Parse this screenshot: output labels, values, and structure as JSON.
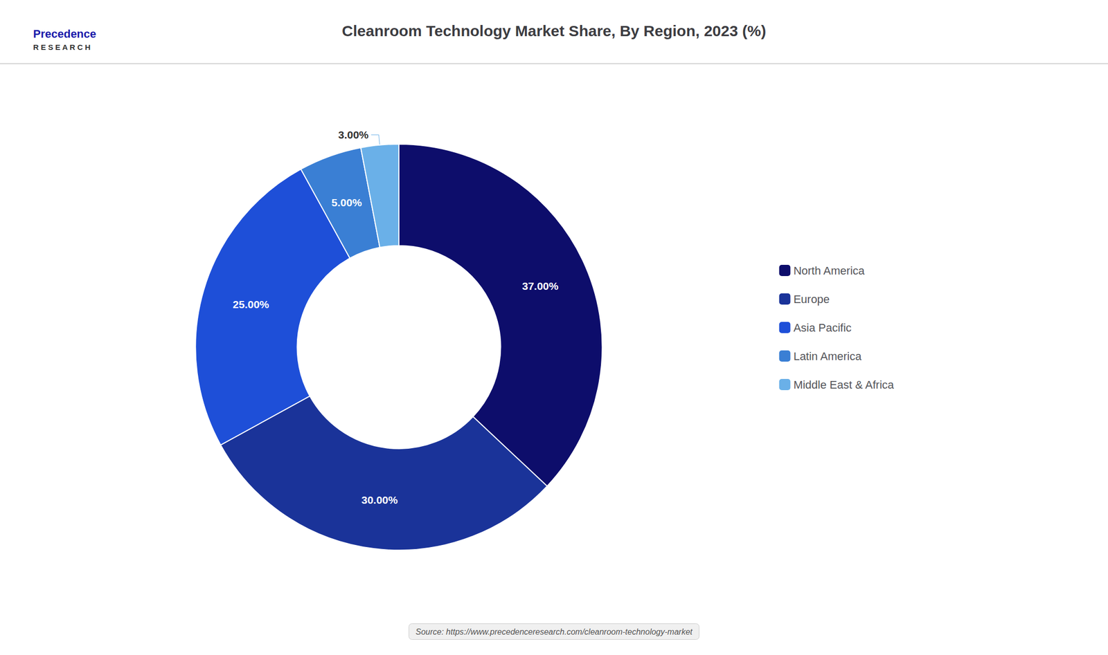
{
  "chart_data": {
    "type": "pie",
    "title": "Cleanroom Technology Market Share, By Region, 2023 (%)",
    "categories": [
      "North America",
      "Europe",
      "Asia Pacific",
      "Latin America",
      "Middle East & Africa"
    ],
    "values": [
      37.0,
      30.0,
      25.0,
      5.0,
      3.0
    ],
    "value_labels": [
      "37.00%",
      "30.00%",
      "25.00%",
      "5.00%",
      "3.00%"
    ],
    "colors": [
      "#0d0d6b",
      "#1a3399",
      "#1e4fd8",
      "#3a7fd4",
      "#6ab0e8"
    ],
    "data_labels": true,
    "legend": "right",
    "annotations": [
      "Precedence",
      "R E S E A R C H",
      "Source: https://www.precedenceresearch.com/cleanroom-technology-market"
    ]
  }
}
